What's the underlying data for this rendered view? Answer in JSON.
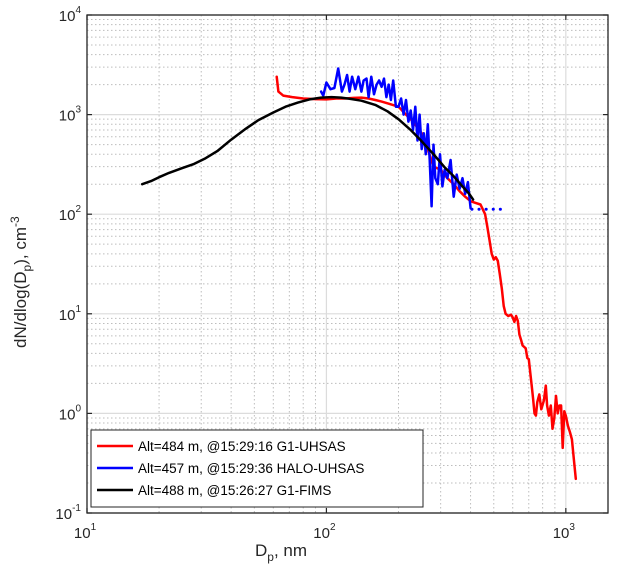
{
  "chart_data": {
    "type": "line",
    "xscale": "log",
    "yscale": "log",
    "xlim": [
      10,
      1500
    ],
    "ylim": [
      0.1,
      10000
    ],
    "xlabel": {
      "main": "D",
      "sub": "p",
      "rest": ", nm"
    },
    "ylabel": {
      "a": "dN/dlog(D",
      "sub": "p",
      "b": "), cm",
      "sup": "-3"
    },
    "xticks": [
      {
        "value": 10,
        "base": "10",
        "exp": "1"
      },
      {
        "value": 100,
        "base": "10",
        "exp": "2"
      },
      {
        "value": 1000,
        "base": "10",
        "exp": "3"
      }
    ],
    "yticks": [
      {
        "value": 0.1,
        "base": "10",
        "exp": "-1"
      },
      {
        "value": 1,
        "base": "10",
        "exp": "0"
      },
      {
        "value": 10,
        "base": "10",
        "exp": "1"
      },
      {
        "value": 100,
        "base": "10",
        "exp": "2"
      },
      {
        "value": 1000,
        "base": "10",
        "exp": "3"
      },
      {
        "value": 10000,
        "base": "10",
        "exp": "4"
      }
    ],
    "grid": true,
    "legend_position": "bottom-left",
    "series": [
      {
        "name": "Alt=484 m, @15:29:16 G1-UHSAS",
        "color": "#ff0000",
        "style": "solid",
        "points": [
          [
            62,
            2400
          ],
          [
            63,
            1700
          ],
          [
            66,
            1550
          ],
          [
            72,
            1500
          ],
          [
            80,
            1450
          ],
          [
            90,
            1430
          ],
          [
            100,
            1420
          ],
          [
            110,
            1450
          ],
          [
            120,
            1450
          ],
          [
            130,
            1470
          ],
          [
            140,
            1480
          ],
          [
            150,
            1450
          ],
          [
            160,
            1400
          ],
          [
            170,
            1350
          ],
          [
            180,
            1300
          ],
          [
            200,
            1200
          ],
          [
            215,
            1000
          ],
          [
            230,
            850
          ],
          [
            250,
            650
          ],
          [
            265,
            450
          ],
          [
            280,
            300
          ],
          [
            300,
            280
          ],
          [
            320,
            230
          ],
          [
            340,
            200
          ],
          [
            360,
            170
          ],
          [
            380,
            150
          ],
          [
            400,
            135
          ],
          [
            420,
            130
          ],
          [
            440,
            125
          ],
          [
            460,
            100
          ],
          [
            470,
            75
          ],
          [
            480,
            55
          ],
          [
            490,
            40
          ],
          [
            500,
            35
          ],
          [
            510,
            37
          ],
          [
            520,
            34
          ],
          [
            530,
            25
          ],
          [
            540,
            18
          ],
          [
            550,
            12
          ],
          [
            560,
            10
          ],
          [
            575,
            9.5
          ],
          [
            590,
            9.8
          ],
          [
            600,
            9.2
          ],
          [
            610,
            8.3
          ],
          [
            620,
            9.5
          ],
          [
            630,
            8.5
          ],
          [
            640,
            6.2
          ],
          [
            650,
            5.5
          ],
          [
            660,
            4.8
          ],
          [
            680,
            4.5
          ],
          [
            690,
            3.6
          ],
          [
            700,
            3.5
          ],
          [
            710,
            2.6
          ],
          [
            720,
            1.9
          ],
          [
            730,
            1.4
          ],
          [
            740,
            1.0
          ],
          [
            750,
            0.95
          ],
          [
            760,
            1.3
          ],
          [
            775,
            1.55
          ],
          [
            790,
            1.1
          ],
          [
            810,
            1.35
          ],
          [
            825,
            1.9
          ],
          [
            835,
            1.2
          ],
          [
            850,
            0.95
          ],
          [
            865,
            1.2
          ],
          [
            880,
            0.7
          ],
          [
            895,
            0.9
          ],
          [
            910,
            1.5
          ],
          [
            925,
            1.0
          ],
          [
            940,
            1.2
          ],
          [
            955,
            1.2
          ],
          [
            970,
            0.45
          ],
          [
            985,
            1.05
          ],
          [
            1000,
            0.95
          ],
          [
            1020,
            0.75
          ],
          [
            1040,
            0.65
          ],
          [
            1060,
            0.55
          ],
          [
            1080,
            0.35
          ],
          [
            1100,
            0.22
          ]
        ]
      },
      {
        "name": "Alt=457 m, @15:29:36 HALO-UHSAS",
        "color": "#0000ff",
        "style": "solid",
        "points": [
          [
            95,
            1700
          ],
          [
            97,
            1550
          ],
          [
            100,
            2100
          ],
          [
            104,
            1800
          ],
          [
            108,
            1850
          ],
          [
            112,
            2900
          ],
          [
            116,
            1700
          ],
          [
            119,
            2000
          ],
          [
            122,
            2500
          ],
          [
            125,
            1700
          ],
          [
            128,
            2400
          ],
          [
            132,
            1800
          ],
          [
            136,
            2400
          ],
          [
            140,
            1700
          ],
          [
            143,
            2200
          ],
          [
            147,
            2300
          ],
          [
            150,
            1500
          ],
          [
            154,
            2400
          ],
          [
            158,
            1600
          ],
          [
            162,
            2000
          ],
          [
            166,
            2200
          ],
          [
            170,
            1900
          ],
          [
            174,
            2300
          ],
          [
            178,
            1500
          ],
          [
            182,
            2000
          ],
          [
            186,
            1400
          ],
          [
            190,
            2200
          ],
          [
            195,
            1200
          ],
          [
            200,
            1200
          ],
          [
            205,
            1450
          ],
          [
            210,
            1000
          ],
          [
            215,
            1400
          ],
          [
            220,
            850
          ],
          [
            225,
            1100
          ],
          [
            230,
            700
          ],
          [
            235,
            1200
          ],
          [
            240,
            550
          ],
          [
            245,
            1000
          ],
          [
            250,
            450
          ],
          [
            255,
            650
          ],
          [
            260,
            400
          ],
          [
            265,
            800
          ],
          [
            270,
            350
          ],
          [
            275,
            120
          ],
          [
            280,
            500
          ],
          [
            285,
            230
          ],
          [
            292,
            200
          ],
          [
            298,
            400
          ],
          [
            305,
            190
          ],
          [
            312,
            280
          ],
          [
            320,
            230
          ],
          [
            330,
            350
          ],
          [
            340,
            150
          ],
          [
            350,
            250
          ],
          [
            360,
            180
          ],
          [
            370,
            230
          ],
          [
            380,
            160
          ],
          [
            390,
            210
          ],
          [
            400,
            115
          ]
        ]
      },
      {
        "name": "Alt=457 m, @15:29:36 HALO-UHSAS",
        "color": "#0000ff",
        "style": "dotted",
        "points": [
          [
            405,
            112
          ],
          [
            420,
            112
          ],
          [
            440,
            112
          ],
          [
            460,
            112
          ],
          [
            480,
            112
          ],
          [
            500,
            112
          ],
          [
            520,
            112
          ],
          [
            540,
            112
          ]
        ]
      },
      {
        "name": "Alt=488 m, @15:26:27 G1-FIMS",
        "color": "#000000",
        "style": "solid",
        "points": [
          [
            17,
            200
          ],
          [
            18.5,
            215
          ],
          [
            20,
            235
          ],
          [
            22,
            260
          ],
          [
            25,
            290
          ],
          [
            28,
            320
          ],
          [
            31,
            360
          ],
          [
            35,
            430
          ],
          [
            40,
            560
          ],
          [
            46,
            720
          ],
          [
            52,
            880
          ],
          [
            60,
            1050
          ],
          [
            68,
            1210
          ],
          [
            76,
            1320
          ],
          [
            85,
            1420
          ],
          [
            95,
            1480
          ],
          [
            105,
            1500
          ],
          [
            115,
            1480
          ],
          [
            125,
            1440
          ],
          [
            140,
            1380
          ],
          [
            160,
            1250
          ],
          [
            180,
            1080
          ],
          [
            200,
            900
          ],
          [
            225,
            700
          ],
          [
            250,
            540
          ],
          [
            280,
            400
          ],
          [
            310,
            300
          ],
          [
            340,
            240
          ],
          [
            370,
            190
          ],
          [
            395,
            160
          ],
          [
            410,
            140
          ]
        ]
      }
    ]
  }
}
